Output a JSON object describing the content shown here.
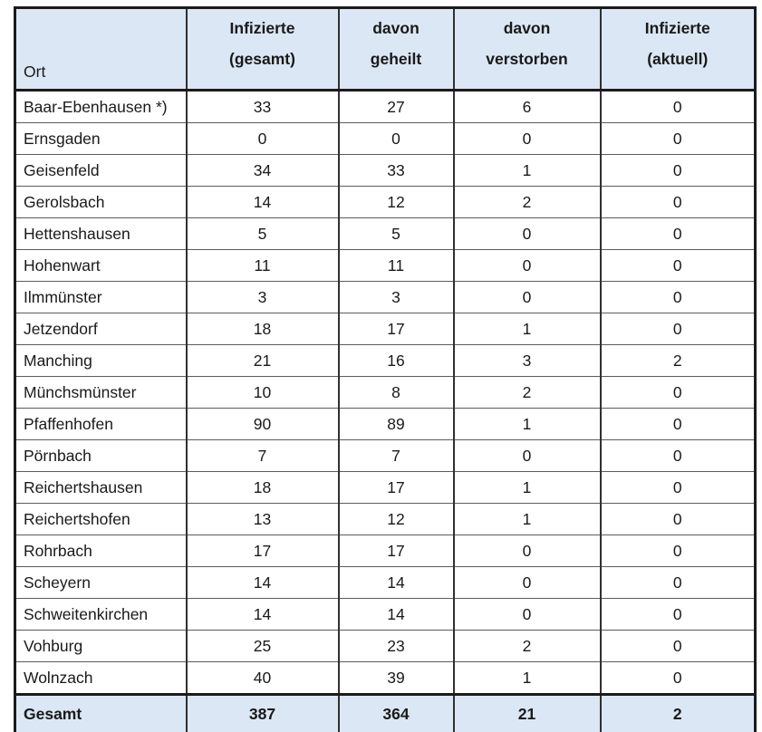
{
  "table": {
    "colors": {
      "header_background": "#dbe7f4",
      "total_row_background": "#dbe7f4",
      "outer_border": "#1b1b1b",
      "column_border": "#303030",
      "row_border": "#5c5c5c",
      "text": "#1a1a1a"
    },
    "header": {
      "ort": "Ort",
      "cols": [
        {
          "line1": "Infizierte",
          "line2": "(gesamt)"
        },
        {
          "line1": "davon",
          "line2": "geheilt"
        },
        {
          "line1": "davon",
          "line2": "verstorben"
        },
        {
          "line1": "Infizierte",
          "line2": "(aktuell)"
        }
      ]
    },
    "rows": [
      {
        "ort": "Baar-Ebenhausen *)",
        "values": [
          33,
          27,
          6,
          0
        ]
      },
      {
        "ort": "Ernsgaden",
        "values": [
          0,
          0,
          0,
          0
        ]
      },
      {
        "ort": "Geisenfeld",
        "values": [
          34,
          33,
          1,
          0
        ]
      },
      {
        "ort": "Gerolsbach",
        "values": [
          14,
          12,
          2,
          0
        ]
      },
      {
        "ort": "Hettenshausen",
        "values": [
          5,
          5,
          0,
          0
        ]
      },
      {
        "ort": "Hohenwart",
        "values": [
          11,
          11,
          0,
          0
        ]
      },
      {
        "ort": "Ilmmünster",
        "values": [
          3,
          3,
          0,
          0
        ]
      },
      {
        "ort": "Jetzendorf",
        "values": [
          18,
          17,
          1,
          0
        ]
      },
      {
        "ort": "Manching",
        "values": [
          21,
          16,
          3,
          2
        ]
      },
      {
        "ort": "Münchsmünster",
        "values": [
          10,
          8,
          2,
          0
        ]
      },
      {
        "ort": "Pfaffenhofen",
        "values": [
          90,
          89,
          1,
          0
        ]
      },
      {
        "ort": "Pörnbach",
        "values": [
          7,
          7,
          0,
          0
        ]
      },
      {
        "ort": "Reichertshausen",
        "values": [
          18,
          17,
          1,
          0
        ]
      },
      {
        "ort": "Reichertshofen",
        "values": [
          13,
          12,
          1,
          0
        ]
      },
      {
        "ort": "Rohrbach",
        "values": [
          17,
          17,
          0,
          0
        ]
      },
      {
        "ort": "Scheyern",
        "values": [
          14,
          14,
          0,
          0
        ]
      },
      {
        "ort": "Schweitenkirchen",
        "values": [
          14,
          14,
          0,
          0
        ]
      },
      {
        "ort": "Vohburg",
        "values": [
          25,
          23,
          2,
          0
        ]
      },
      {
        "ort": "Wolnzach",
        "values": [
          40,
          39,
          1,
          0
        ]
      }
    ],
    "total": {
      "label": "Gesamt",
      "values": [
        387,
        364,
        21,
        2
      ]
    }
  }
}
